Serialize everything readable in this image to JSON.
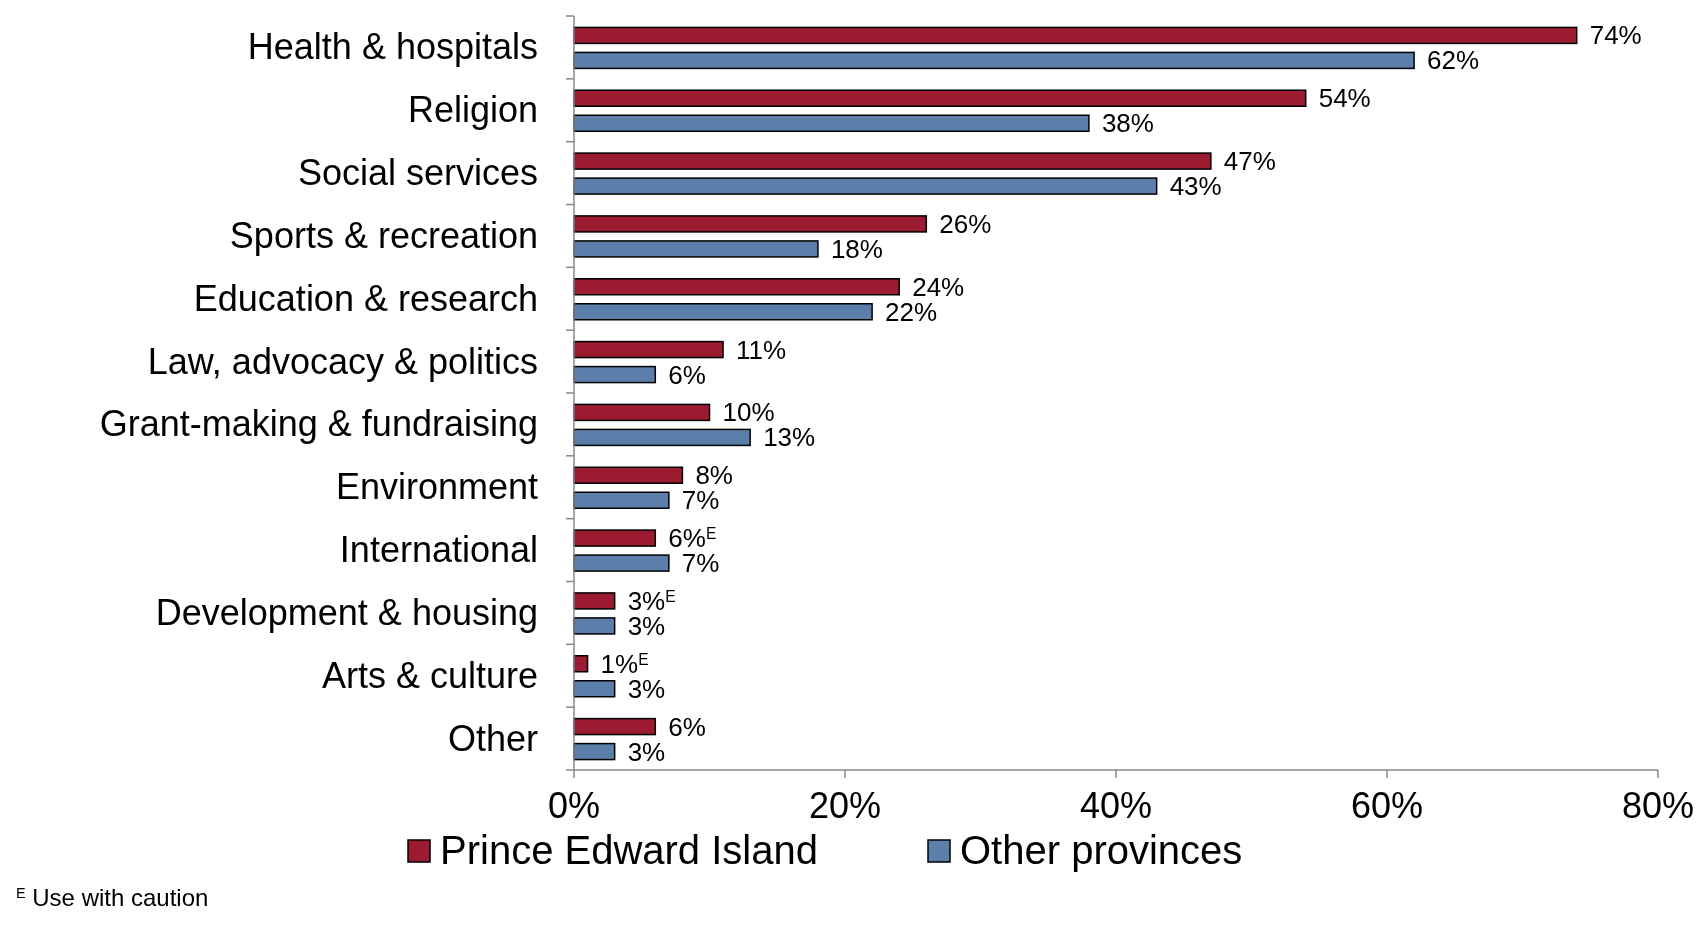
{
  "chart_data": {
    "type": "bar",
    "orientation": "horizontal",
    "categories": [
      "Health & hospitals",
      "Religion",
      "Social services",
      "Sports & recreation",
      "Education & research",
      "Law, advocacy & politics",
      "Grant-making & fundraising",
      "Environment",
      "International",
      "Development & housing",
      "Arts & culture",
      "Other"
    ],
    "series": [
      {
        "name": "Prince Edward Island",
        "color": "#9b1b30",
        "values": [
          74,
          54,
          47,
          26,
          24,
          11,
          10,
          8,
          6,
          3,
          1,
          6
        ],
        "value_labels": [
          "74%",
          "54%",
          "47%",
          "26%",
          "24%",
          "11%",
          "10%",
          "8%",
          "6%$^{E}$",
          "3%$^{E}$",
          "1%$^{E}$",
          "6%"
        ]
      },
      {
        "name": "Other provinces",
        "color": "#5b7faa",
        "values": [
          62,
          38,
          43,
          18,
          22,
          6,
          13,
          7,
          7,
          3,
          3,
          3
        ],
        "value_labels": [
          "62%",
          "38%",
          "43%",
          "18%",
          "22%",
          "6%",
          "13%",
          "7%",
          "7%",
          "3%",
          "3%",
          "3%"
        ]
      }
    ],
    "xlim": [
      0,
      80
    ],
    "xticks": [
      {
        "value": 0,
        "label": "0%"
      },
      {
        "value": 20,
        "label": "20%"
      },
      {
        "value": 40,
        "label": "40%"
      },
      {
        "value": 60,
        "label": "60%"
      },
      {
        "value": 80,
        "label": "80%"
      }
    ],
    "grid": false,
    "legend": "bottom",
    "annotations": [
      "$^{E}$ Use with caution"
    ]
  }
}
